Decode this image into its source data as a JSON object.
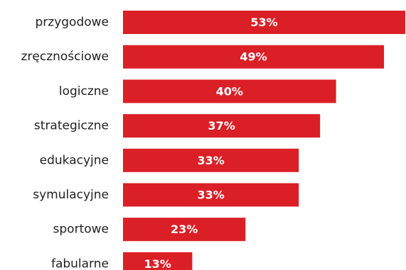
{
  "colors": {
    "bar": "#db1f26",
    "label_text": "#222222",
    "value_text": "#ffffff",
    "background": "#ffffff"
  },
  "chart_data": {
    "type": "bar",
    "orientation": "horizontal",
    "categories": [
      "przygodowe",
      "zręcznościowe",
      "logiczne",
      "strategiczne",
      "edukacyjne",
      "symulacyjne",
      "sportowe",
      "fabularne"
    ],
    "values": [
      53,
      49,
      40,
      37,
      33,
      33,
      23,
      13
    ],
    "value_labels": [
      "53%",
      "49%",
      "40%",
      "37%",
      "33%",
      "33%",
      "23%",
      "13%"
    ],
    "unit": "%",
    "title": "",
    "xlabel": "",
    "ylabel": "",
    "xlim": [
      0,
      53
    ],
    "grid": false,
    "legend": "none"
  }
}
